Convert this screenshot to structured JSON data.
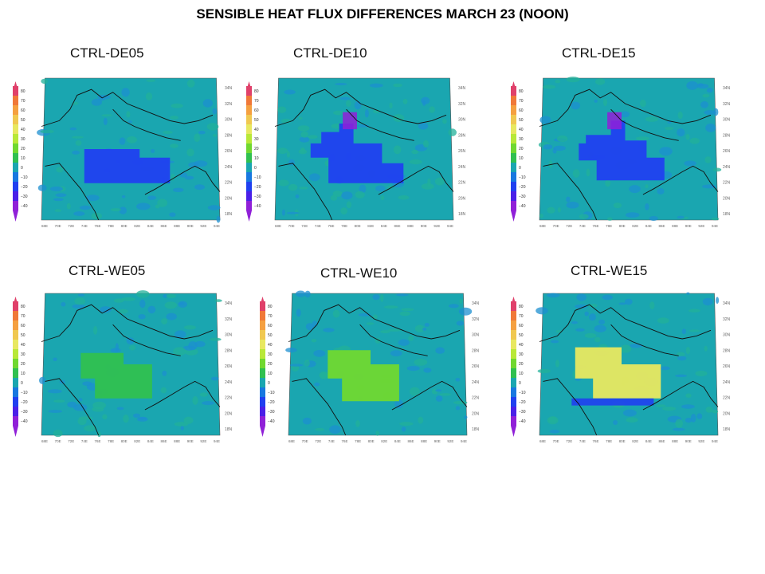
{
  "title": "SENSIBLE HEAT FLUX DIFFERENCES MARCH 23 (NOON)",
  "colorbar": {
    "ticks": [
      "80",
      "70",
      "60",
      "50",
      "40",
      "30",
      "20",
      "10",
      "0",
      "−10",
      "−20",
      "−30",
      "−40"
    ]
  },
  "lat_labels": [
    "34N",
    "32N",
    "30N",
    "28N",
    "26N",
    "24N",
    "22N",
    "20N",
    "18N"
  ],
  "lon_labels": [
    "68E",
    "70E",
    "72E",
    "74E",
    "76E",
    "78E",
    "80E",
    "82E",
    "84E",
    "86E",
    "88E",
    "90E",
    "92E",
    "94E"
  ],
  "panels": [
    {
      "label": "CTRL-DE05"
    },
    {
      "label": "CTRL-DE10"
    },
    {
      "label": "CTRL-DE15"
    },
    {
      "label": "CTRL-WE05"
    },
    {
      "label": "CTRL-WE10"
    },
    {
      "label": "CTRL-WE15"
    }
  ],
  "chart_data": {
    "type": "heatmap",
    "title": "SENSIBLE HEAT FLUX DIFFERENCES MARCH 23 (NOON)",
    "colorscale": {
      "levels": [
        80,
        70,
        60,
        50,
        40,
        30,
        20,
        10,
        0,
        -10,
        -20,
        -30,
        -40
      ],
      "colors": [
        "#e0406a",
        "#f07838",
        "#f5a040",
        "#f0c850",
        "#e8e860",
        "#b8e838",
        "#70d830",
        "#30c050",
        "#1aa6b0",
        "#1878e0",
        "#2040f0",
        "#4a20e8",
        "#9020d8"
      ]
    },
    "panels": [
      {
        "name": "CTRL-DE05",
        "background_level": 0,
        "patch_level": -20
      },
      {
        "name": "CTRL-DE10",
        "background_level": 0,
        "patch_level": -20
      },
      {
        "name": "CTRL-DE15",
        "background_level": 0,
        "patch_level": -20
      },
      {
        "name": "CTRL-WE05",
        "background_level": 0,
        "patch_level": 10
      },
      {
        "name": "CTRL-WE10",
        "background_level": 0,
        "patch_level": 20
      },
      {
        "name": "CTRL-WE15",
        "background_level": 0,
        "patch_level": 40
      }
    ]
  }
}
